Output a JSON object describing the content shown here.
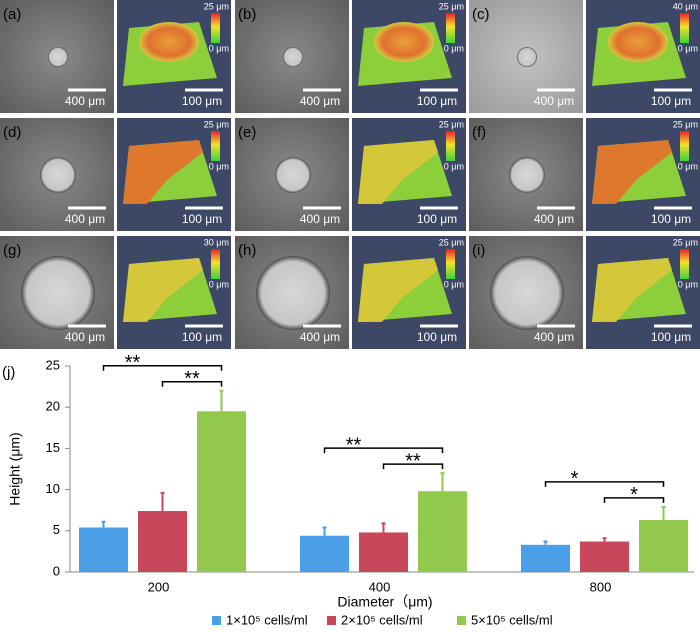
{
  "panels": [
    {
      "label": "(a)",
      "scale_left": "400 μm",
      "scale_right": "100 μm",
      "colorbar_max": "25 μm",
      "colorbar_min": "0 μm"
    },
    {
      "label": "(b)",
      "scale_left": "400 μm",
      "scale_right": "100 μm",
      "colorbar_max": "25 μm",
      "colorbar_min": "0 μm"
    },
    {
      "label": "(c)",
      "scale_left": "400 μm",
      "scale_right": "100 μm",
      "colorbar_max": "40 μm",
      "colorbar_min": "0 μm"
    },
    {
      "label": "(d)",
      "scale_left": "400 μm",
      "scale_right": "100 μm",
      "colorbar_max": "25 μm",
      "colorbar_min": "0 μm"
    },
    {
      "label": "(e)",
      "scale_left": "400 μm",
      "scale_right": "100 μm",
      "colorbar_max": "25 μm",
      "colorbar_min": "0 μm"
    },
    {
      "label": "(f)",
      "scale_left": "400 μm",
      "scale_right": "100 μm",
      "colorbar_max": "25 μm",
      "colorbar_min": "0 μm"
    },
    {
      "label": "(g)",
      "scale_left": "400 μm",
      "scale_right": "100 μm",
      "colorbar_max": "30 μm",
      "colorbar_min": "0 μm"
    },
    {
      "label": "(h)",
      "scale_left": "400 μm",
      "scale_right": "100 μm",
      "colorbar_max": "25 μm",
      "colorbar_min": "0 μm"
    },
    {
      "label": "(i)",
      "scale_left": "400 μm",
      "scale_right": "100 μm",
      "colorbar_max": "25 μm",
      "colorbar_min": "0 μm"
    }
  ],
  "chart_data": {
    "type": "bar",
    "panel_label": "(j)",
    "x_label": "Diameter（μm)",
    "y_label": "Height (μm)",
    "categories": [
      "200",
      "400",
      "800"
    ],
    "series": [
      {
        "name": "1×10⁵ cells/ml",
        "color": "#4a9fe6",
        "values": [
          5.4,
          4.4,
          3.3
        ],
        "errors": [
          0.7,
          1.0,
          0.4
        ]
      },
      {
        "name": "2×10⁵ cells/ml",
        "color": "#c9475b",
        "values": [
          7.4,
          4.8,
          3.7
        ],
        "errors": [
          2.2,
          1.1,
          0.4
        ]
      },
      {
        "name": "5×10⁵ cells/ml",
        "color": "#92c84b",
        "values": [
          19.5,
          9.8,
          6.3
        ],
        "errors": [
          2.5,
          2.2,
          1.6
        ]
      }
    ],
    "ylim": [
      0,
      25
    ],
    "yticks": [
      0,
      5,
      10,
      15,
      20,
      25
    ],
    "annotations": [
      {
        "category": 0,
        "from_series": 0,
        "to_series": 2,
        "label": "**"
      },
      {
        "category": 0,
        "from_series": 1,
        "to_series": 2,
        "label": "**"
      },
      {
        "category": 1,
        "from_series": 0,
        "to_series": 2,
        "label": "**"
      },
      {
        "category": 1,
        "from_series": 1,
        "to_series": 2,
        "label": "**"
      },
      {
        "category": 2,
        "from_series": 0,
        "to_series": 2,
        "label": "*"
      },
      {
        "category": 2,
        "from_series": 1,
        "to_series": 2,
        "label": "*"
      }
    ]
  }
}
